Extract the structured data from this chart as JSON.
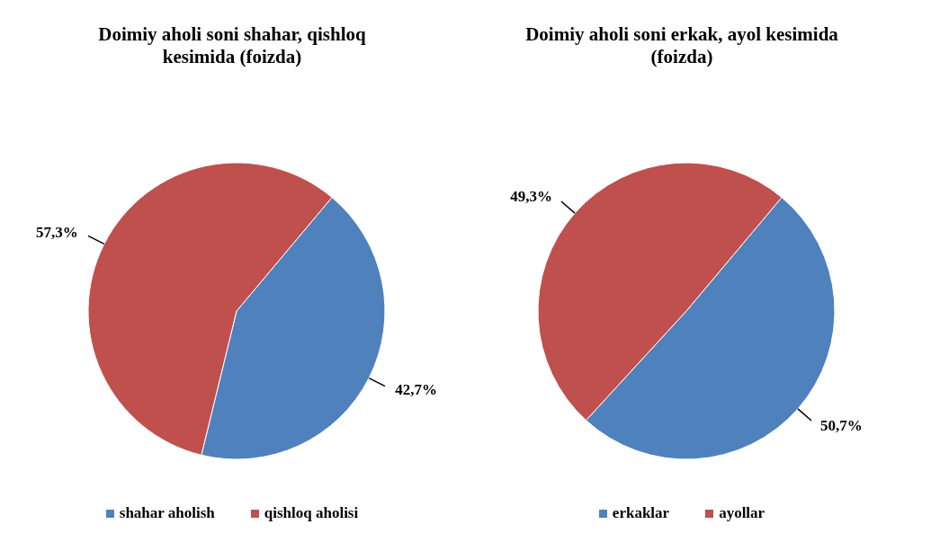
{
  "chart_data": [
    {
      "type": "pie",
      "title": "Doimiy aholi soni shahar, qishloq kesimida (foizda)",
      "categories": [
        "shahar aholish",
        "qishloq aholisi"
      ],
      "values": [
        42.7,
        57.3
      ],
      "colors": [
        "#4f81bd",
        "#c0504d"
      ],
      "value_labels": [
        "42,7%",
        "57,3%"
      ],
      "legend": "bottom"
    },
    {
      "type": "pie",
      "title": "Doimiy aholi soni erkak, ayol kesimida (foizda)",
      "categories": [
        "erkaklar",
        "ayollar"
      ],
      "values": [
        50.7,
        49.3
      ],
      "colors": [
        "#4f81bd",
        "#c0504d"
      ],
      "value_labels": [
        "50,7%",
        "49,3%"
      ],
      "legend": "bottom"
    }
  ]
}
